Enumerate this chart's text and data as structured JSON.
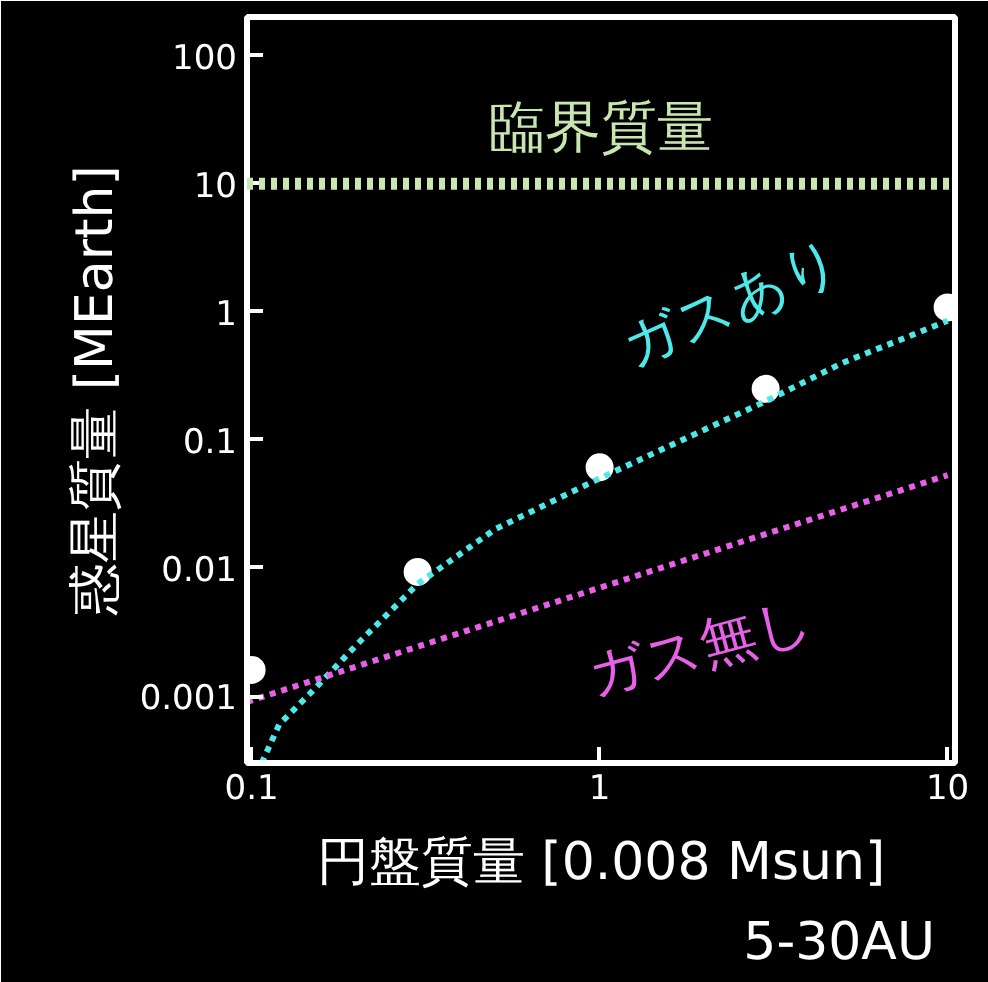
{
  "chart_data": {
    "type": "line",
    "xlabel": "円盤質量 [0.008 Msun]",
    "ylabel": "惑星質量 [MEarth]",
    "log": "xy",
    "grid": false,
    "xlim": [
      0.097,
      10.5
    ],
    "ylim": [
      0.0003,
      200
    ],
    "xticks": [
      0.1,
      1,
      10
    ],
    "yticks": [
      0.001,
      0.01,
      0.1,
      1,
      10,
      100
    ],
    "series": [
      {
        "type": "scatter",
        "marker": "circle",
        "color": "#ffffff",
        "x": [
          0.1,
          0.3,
          1,
          3,
          10
        ],
        "values": [
          0.0016,
          0.0093,
          0.061,
          0.25,
          1.08
        ]
      },
      {
        "name": "ガスあり",
        "color": "#4ee8e8",
        "line_style": "dotted",
        "x": [
          0.107,
          0.12,
          0.15,
          0.2,
          0.3,
          0.5,
          1,
          2,
          3,
          5,
          10
        ],
        "values": [
          0.0003,
          0.0006,
          0.0011,
          0.0025,
          0.0075,
          0.02,
          0.05,
          0.12,
          0.2,
          0.4,
          0.85
        ]
      },
      {
        "name": "ガス無し",
        "color": "#e860e8",
        "line_style": "dotted",
        "x": [
          0.097,
          10
        ],
        "values": [
          0.0009,
          0.053
        ]
      }
    ],
    "ref_lines": [
      {
        "axis": "y",
        "value": 10,
        "label": "臨界質量",
        "color": "#c8e6b0",
        "line_style": "dotted"
      }
    ],
    "annotations": [
      "5-30AU"
    ]
  }
}
